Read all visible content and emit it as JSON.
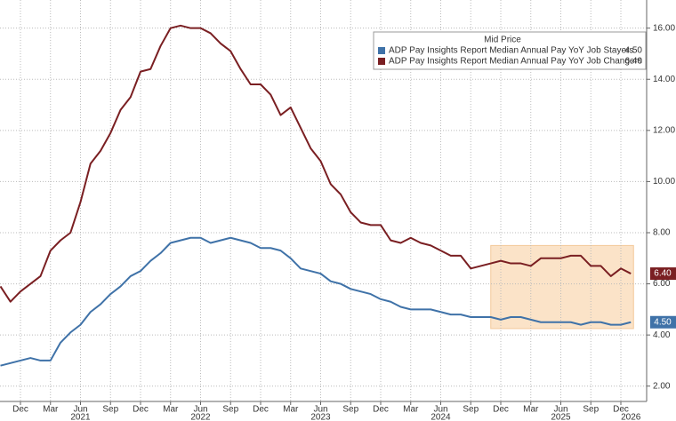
{
  "chart_data": {
    "type": "line",
    "legend_title": "Mid Price",
    "x": [
      "2020-10",
      "2020-11",
      "2020-12",
      "2021-01",
      "2021-02",
      "2021-03",
      "2021-04",
      "2021-05",
      "2021-06",
      "2021-07",
      "2021-08",
      "2021-09",
      "2021-10",
      "2021-11",
      "2021-12",
      "2022-01",
      "2022-02",
      "2022-03",
      "2022-04",
      "2022-05",
      "2022-06",
      "2022-07",
      "2022-08",
      "2022-09",
      "2022-10",
      "2022-11",
      "2022-12",
      "2023-01",
      "2023-02",
      "2023-03",
      "2023-04",
      "2023-05",
      "2023-06",
      "2023-07",
      "2023-08",
      "2023-09",
      "2023-10",
      "2023-11",
      "2023-12",
      "2024-01",
      "2024-02",
      "2024-03",
      "2024-04",
      "2024-05",
      "2024-06",
      "2024-07",
      "2024-08",
      "2024-09",
      "2024-10",
      "2024-11",
      "2024-12",
      "2025-01",
      "2025-02",
      "2025-03",
      "2025-04",
      "2025-05",
      "2025-06",
      "2025-07",
      "2025-08",
      "2025-09",
      "2025-10",
      "2025-11",
      "2025-12",
      "2026-01"
    ],
    "series": [
      {
        "name": "ADP Pay Insights Report Median Annual Pay YoY Job Stayers",
        "color": "#3f72a8",
        "legend_value": "4.50",
        "values": [
          2.8,
          2.9,
          3.0,
          3.1,
          3.0,
          3.0,
          3.7,
          4.1,
          4.4,
          4.9,
          5.2,
          5.6,
          5.9,
          6.3,
          6.5,
          6.9,
          7.2,
          7.6,
          7.7,
          7.8,
          7.8,
          7.6,
          7.7,
          7.8,
          7.7,
          7.6,
          7.4,
          7.4,
          7.3,
          7.0,
          6.6,
          6.5,
          6.4,
          6.1,
          6.0,
          5.8,
          5.7,
          5.6,
          5.4,
          5.3,
          5.1,
          5.0,
          5.0,
          5.0,
          4.9,
          4.8,
          4.8,
          4.7,
          4.7,
          4.7,
          4.6,
          4.7,
          4.7,
          4.6,
          4.5,
          4.5,
          4.5,
          4.5,
          4.4,
          4.5,
          4.5,
          4.4,
          4.4,
          4.5
        ],
        "value_labels": {
          "63": "4.50"
        }
      },
      {
        "name": "ADP Pay Insights Report Median Annual Pay YoY Job Changers",
        "color": "#7a1f22",
        "legend_value": "6.40",
        "values": [
          5.9,
          5.3,
          5.7,
          6.0,
          6.3,
          7.3,
          7.7,
          8.0,
          9.2,
          10.7,
          11.2,
          11.9,
          12.8,
          13.3,
          14.3,
          14.4,
          15.3,
          16.0,
          16.1,
          16.0,
          16.0,
          15.8,
          15.4,
          15.1,
          14.4,
          13.8,
          13.8,
          13.4,
          12.6,
          12.9,
          12.1,
          11.3,
          10.8,
          9.9,
          9.5,
          8.8,
          8.4,
          8.3,
          8.3,
          7.7,
          7.6,
          7.8,
          7.6,
          7.5,
          7.3,
          7.1,
          7.1,
          6.6,
          6.7,
          6.8,
          6.9,
          6.8,
          6.8,
          6.7,
          7.0,
          7.0,
          7.0,
          7.1,
          7.1,
          6.7,
          6.7,
          6.3,
          6.6,
          6.4
        ],
        "value_labels": {
          "63": "6.40"
        }
      }
    ],
    "highlight": {
      "x": [
        "2024-11",
        "2026-01"
      ],
      "y": [
        4.25,
        7.5
      ],
      "color": "#fbe3c8"
    },
    "ylim": [
      1.4,
      17.1
    ],
    "yticks": [
      {
        "value": 2,
        "label": "2.00"
      },
      {
        "value": 4,
        "label": "4.00"
      },
      {
        "value": 6,
        "label": "6.00"
      },
      {
        "value": 8,
        "label": "8.00"
      },
      {
        "value": 10,
        "label": "10.00"
      },
      {
        "value": 12,
        "label": "12.00"
      },
      {
        "value": 14,
        "label": "14.00"
      },
      {
        "value": 16,
        "label": "16.00"
      }
    ],
    "xticks": [
      {
        "value": "2020-12",
        "label": "Dec"
      },
      {
        "value": "2021-03",
        "label": "Mar"
      },
      {
        "value": "2021-06",
        "label": "Jun"
      },
      {
        "value": "2021-09",
        "label": "Sep"
      },
      {
        "value": "2021-12",
        "label": "Dec"
      },
      {
        "value": "2022-03",
        "label": "Mar"
      },
      {
        "value": "2022-06",
        "label": "Jun"
      },
      {
        "value": "2022-09",
        "label": "Sep"
      },
      {
        "value": "2022-12",
        "label": "Dec"
      },
      {
        "value": "2023-03",
        "label": "Mar"
      },
      {
        "value": "2023-06",
        "label": "Jun"
      },
      {
        "value": "2023-09",
        "label": "Sep"
      },
      {
        "value": "2023-12",
        "label": "Dec"
      },
      {
        "value": "2024-03",
        "label": "Mar"
      },
      {
        "value": "2024-06",
        "label": "Jun"
      },
      {
        "value": "2024-09",
        "label": "Sep"
      },
      {
        "value": "2024-12",
        "label": "Dec"
      },
      {
        "value": "2025-03",
        "label": "Mar"
      },
      {
        "value": "2025-06",
        "label": "Jun"
      },
      {
        "value": "2025-09",
        "label": "Sep"
      },
      {
        "value": "2025-12",
        "label": "Dec"
      }
    ],
    "year_ticks": [
      {
        "value": "2021-06",
        "label": "2021"
      },
      {
        "value": "2022-06",
        "label": "2022"
      },
      {
        "value": "2023-06",
        "label": "2023"
      },
      {
        "value": "2024-06",
        "label": "2024"
      },
      {
        "value": "2025-06",
        "label": "2025"
      },
      {
        "value": "2026-01",
        "label": "2026"
      }
    ],
    "grid": true
  }
}
